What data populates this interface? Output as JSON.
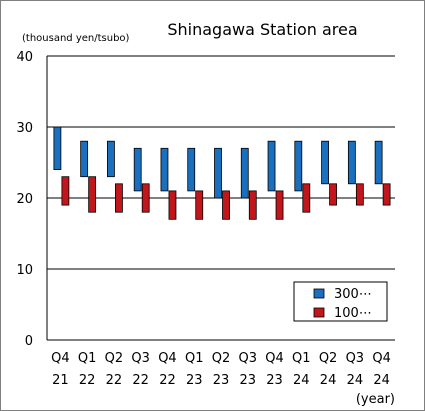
{
  "chart_data": {
    "type": "bar",
    "title": "Shinagawa Station area",
    "ylabel": "(thousand yen/tsubo)",
    "xunit": "(year)",
    "ylim": [
      0,
      40
    ],
    "yticks": [
      0,
      10,
      20,
      30,
      40
    ],
    "grid": true,
    "legend_position": "bottom-right",
    "categories": [
      [
        "Q4",
        "21"
      ],
      [
        "Q1",
        "22"
      ],
      [
        "Q2",
        "22"
      ],
      [
        "Q3",
        "22"
      ],
      [
        "Q4",
        "22"
      ],
      [
        "Q1",
        "23"
      ],
      [
        "Q2",
        "23"
      ],
      [
        "Q3",
        "23"
      ],
      [
        "Q4",
        "23"
      ],
      [
        "Q1",
        "24"
      ],
      [
        "Q2",
        "24"
      ],
      [
        "Q3",
        "24"
      ],
      [
        "Q4",
        "24"
      ]
    ],
    "series": [
      {
        "name": "300⋯",
        "color": "#1a6fbf",
        "ranges": [
          [
            24,
            30
          ],
          [
            23,
            28
          ],
          [
            23,
            28
          ],
          [
            21,
            27
          ],
          [
            21,
            27
          ],
          [
            21,
            27
          ],
          [
            20,
            27
          ],
          [
            20,
            27
          ],
          [
            21,
            28
          ],
          [
            21,
            28
          ],
          [
            22,
            28
          ],
          [
            22,
            28
          ],
          [
            22,
            28
          ]
        ]
      },
      {
        "name": "100⋯",
        "color": "#c0161c",
        "ranges": [
          [
            19,
            23
          ],
          [
            18,
            23
          ],
          [
            18,
            22
          ],
          [
            18,
            22
          ],
          [
            17,
            21
          ],
          [
            17,
            21
          ],
          [
            17,
            21
          ],
          [
            17,
            21
          ],
          [
            17,
            21
          ],
          [
            18,
            22
          ],
          [
            19,
            22
          ],
          [
            19,
            22
          ],
          [
            19,
            22
          ]
        ]
      }
    ]
  }
}
